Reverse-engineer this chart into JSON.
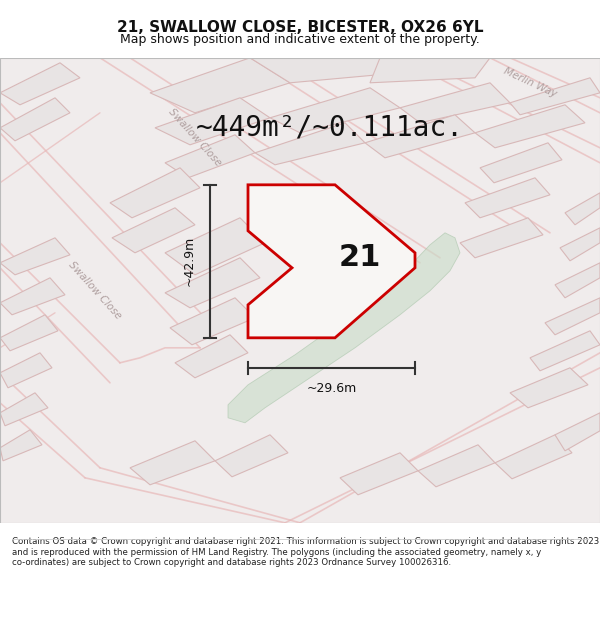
{
  "title": "21, SWALLOW CLOSE, BICESTER, OX26 6YL",
  "subtitle": "Map shows position and indicative extent of the property.",
  "area_text": "~449m²/~0.111ac.",
  "dim_width": "~29.6m",
  "dim_height": "~42.9m",
  "label": "21",
  "footer": "Contains OS data © Crown copyright and database right 2021. This information is subject to Crown copyright and database rights 2023 and is reproduced with the permission of HM Land Registry. The polygons (including the associated geometry, namely x, y co-ordinates) are subject to Crown copyright and database rights 2023 Ordnance Survey 100026316.",
  "map_bg": "#f2eeee",
  "block_fill": "#e8e4e4",
  "block_edge": "#d8b8b8",
  "road_line_color": "#e8b8b8",
  "property_fill": "#ffffff",
  "property_edge": "#cc0000",
  "green_fill": "#c8dcc8",
  "green_edge": "#a8c4a8",
  "title_fontsize": 11,
  "subtitle_fontsize": 9,
  "area_fontsize": 20,
  "label_fontsize": 22,
  "footer_fontsize": 6.2,
  "dim_fontsize": 9,
  "street_label_fontsize": 7.5
}
